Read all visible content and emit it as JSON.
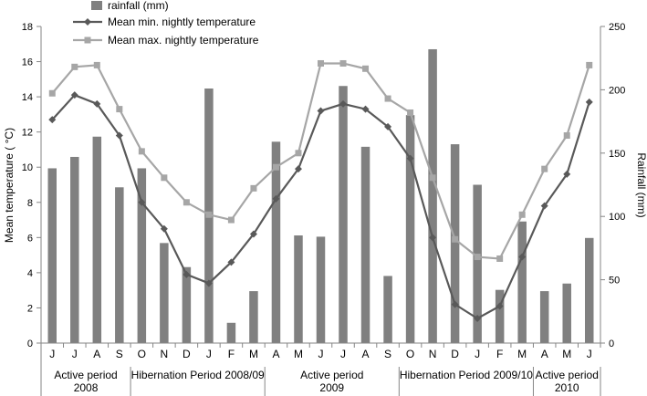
{
  "chart_data": {
    "type": "bar+line",
    "categories": [
      "J",
      "J",
      "A",
      "S",
      "O",
      "N",
      "D",
      "J",
      "F",
      "M",
      "A",
      "M",
      "J",
      "J",
      "A",
      "S",
      "O",
      "N",
      "D",
      "J",
      "F",
      "M",
      "A",
      "M",
      "J"
    ],
    "groups": [
      {
        "label": "Active period 2008",
        "count": 4
      },
      {
        "label": "Hibernation Period 2008/09",
        "count": 6
      },
      {
        "label": "Active period 2009",
        "count": 6
      },
      {
        "label": "Hibernation Period 2009/10",
        "count": 6
      },
      {
        "label": "Active period 2010",
        "count": 3
      }
    ],
    "series": [
      {
        "name": "rainfall (mm)",
        "kind": "bar",
        "axis": "right",
        "color": "#808080",
        "values": [
          138,
          147,
          163,
          123,
          138,
          79,
          60,
          201,
          16,
          41,
          159,
          85,
          84,
          203,
          155,
          53,
          180,
          232,
          157,
          125,
          42,
          96,
          41,
          47,
          83
        ]
      },
      {
        "name": "Mean min. nightly temperature",
        "kind": "line",
        "axis": "left",
        "color": "#595959",
        "marker": "diamond",
        "values": [
          12.7,
          14.1,
          13.6,
          11.8,
          8.0,
          6.5,
          3.9,
          3.4,
          4.6,
          6.2,
          8.2,
          9.9,
          13.2,
          13.6,
          13.3,
          12.3,
          10.5,
          6.0,
          2.2,
          1.4,
          2.1,
          4.9,
          7.8,
          9.6,
          13.7
        ]
      },
      {
        "name": "Mean max. nightly temperature",
        "kind": "line",
        "axis": "left",
        "color": "#a6a6a6",
        "marker": "square",
        "values": [
          14.2,
          15.7,
          15.8,
          13.3,
          10.9,
          9.4,
          8.0,
          7.3,
          7.0,
          8.8,
          10.0,
          10.8,
          15.9,
          15.9,
          15.6,
          13.9,
          13.1,
          9.4,
          5.9,
          4.9,
          4.8,
          7.3,
          9.9,
          11.8,
          15.8
        ]
      }
    ],
    "ylabel": "Mean temperature ( °C)",
    "y2label": "Rainfall (mm)",
    "ylim": [
      0,
      18
    ],
    "y2lim": [
      0,
      250
    ],
    "yticks": [
      0,
      2,
      4,
      6,
      8,
      10,
      12,
      14,
      16,
      18
    ],
    "y2ticks": [
      0,
      50,
      100,
      150,
      200,
      250
    ],
    "legend_position": "top-left"
  }
}
